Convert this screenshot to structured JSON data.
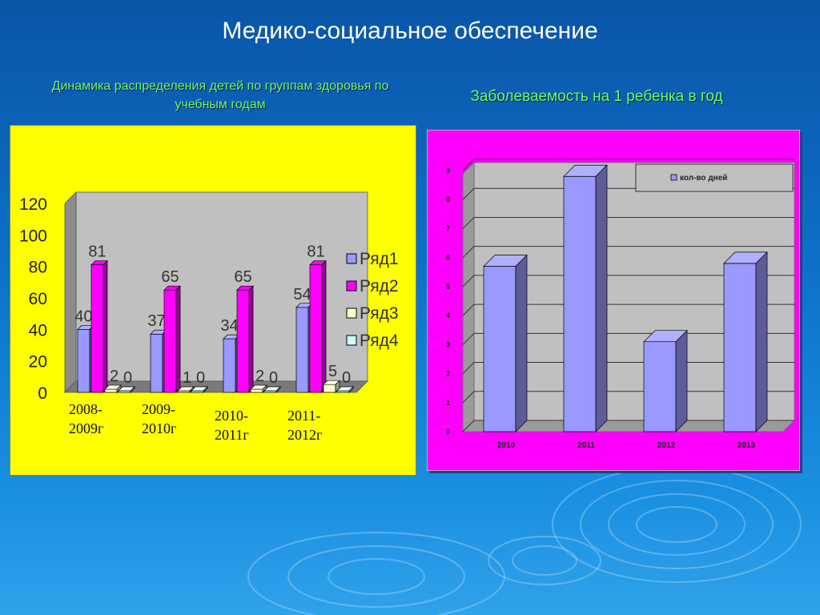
{
  "title": "Медико-социальное обеспечение",
  "left_subtitle": "Динамика распределения детей по группам здоровья по учебным годам",
  "right_subtitle": "Заболеваемость на 1 ребенка в год",
  "chart_data": [
    {
      "type": "bar",
      "title": "",
      "categories": [
        "2008-2009г",
        "2009-2010г",
        "2010-2011г",
        "2011-2012г"
      ],
      "series": [
        {
          "name": "Ряд1",
          "values": [
            40,
            37,
            34,
            54
          ]
        },
        {
          "name": "Ряд2",
          "values": [
            81,
            65,
            65,
            81
          ]
        },
        {
          "name": "Ряд3",
          "values": [
            2,
            1,
            2,
            5
          ]
        },
        {
          "name": "Ряд4",
          "values": [
            0,
            0,
            0,
            0
          ]
        }
      ],
      "ylim": [
        0,
        120
      ],
      "yticks": [
        "0",
        "20",
        "40",
        "60",
        "80",
        "100",
        "120"
      ],
      "legend": "right",
      "colors": [
        "#9999ff",
        "#ff00ff",
        "#ffffcc",
        "#ccffff"
      ],
      "data_labels": true,
      "background": "#ffff00"
    },
    {
      "type": "bar",
      "title": "",
      "categories": [
        "2010",
        "2011",
        "2012",
        "2013"
      ],
      "series": [
        {
          "name": "кол-во дней",
          "values": [
            5.7,
            8.8,
            3.1,
            5.8
          ]
        }
      ],
      "ylim": [
        0,
        9
      ],
      "yticks": [
        "0",
        "1",
        "2",
        "3",
        "4",
        "5",
        "6",
        "7",
        "8",
        "9"
      ],
      "legend": "top-right",
      "colors": [
        "#9999ff"
      ],
      "grid": true,
      "background": "#ff00ff"
    }
  ]
}
